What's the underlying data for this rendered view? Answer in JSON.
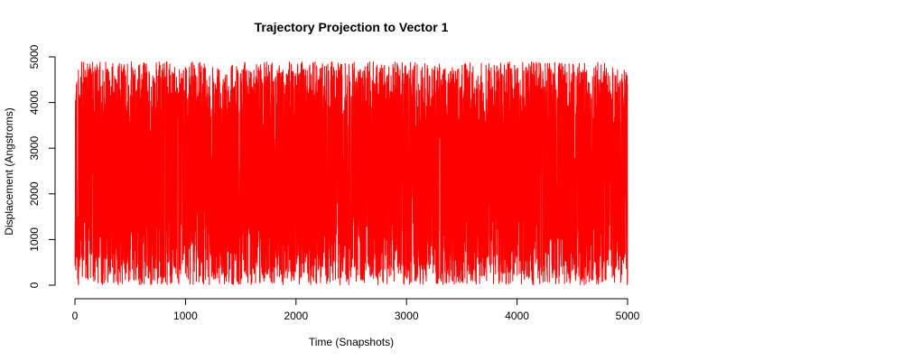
{
  "chart_data": {
    "type": "line",
    "title": "Trajectory Projection to Vector 1",
    "xlabel": "Time (Snapshots)",
    "ylabel": "Displacement (Angstroms)",
    "xlim": [
      0,
      5000
    ],
    "ylim": [
      0,
      5000
    ],
    "xticks": [
      0,
      1000,
      2000,
      3000,
      4000,
      5000
    ],
    "yticks": [
      0,
      1000,
      2000,
      3000,
      4000,
      5000
    ],
    "xtick_labels": [
      "0",
      "1000",
      "2000",
      "3000",
      "4000",
      "5000"
    ],
    "ytick_labels": [
      "0",
      "1000",
      "2000",
      "3000",
      "4000",
      "5000"
    ],
    "grid": false,
    "series": [
      {
        "color": "#ff0000",
        "n_points": 5000,
        "x_start": 1,
        "x_end": 5000,
        "y_min": 0,
        "y_max": 4900,
        "description": "dense oscillating trace spanning nearly the full displacement range"
      }
    ]
  }
}
